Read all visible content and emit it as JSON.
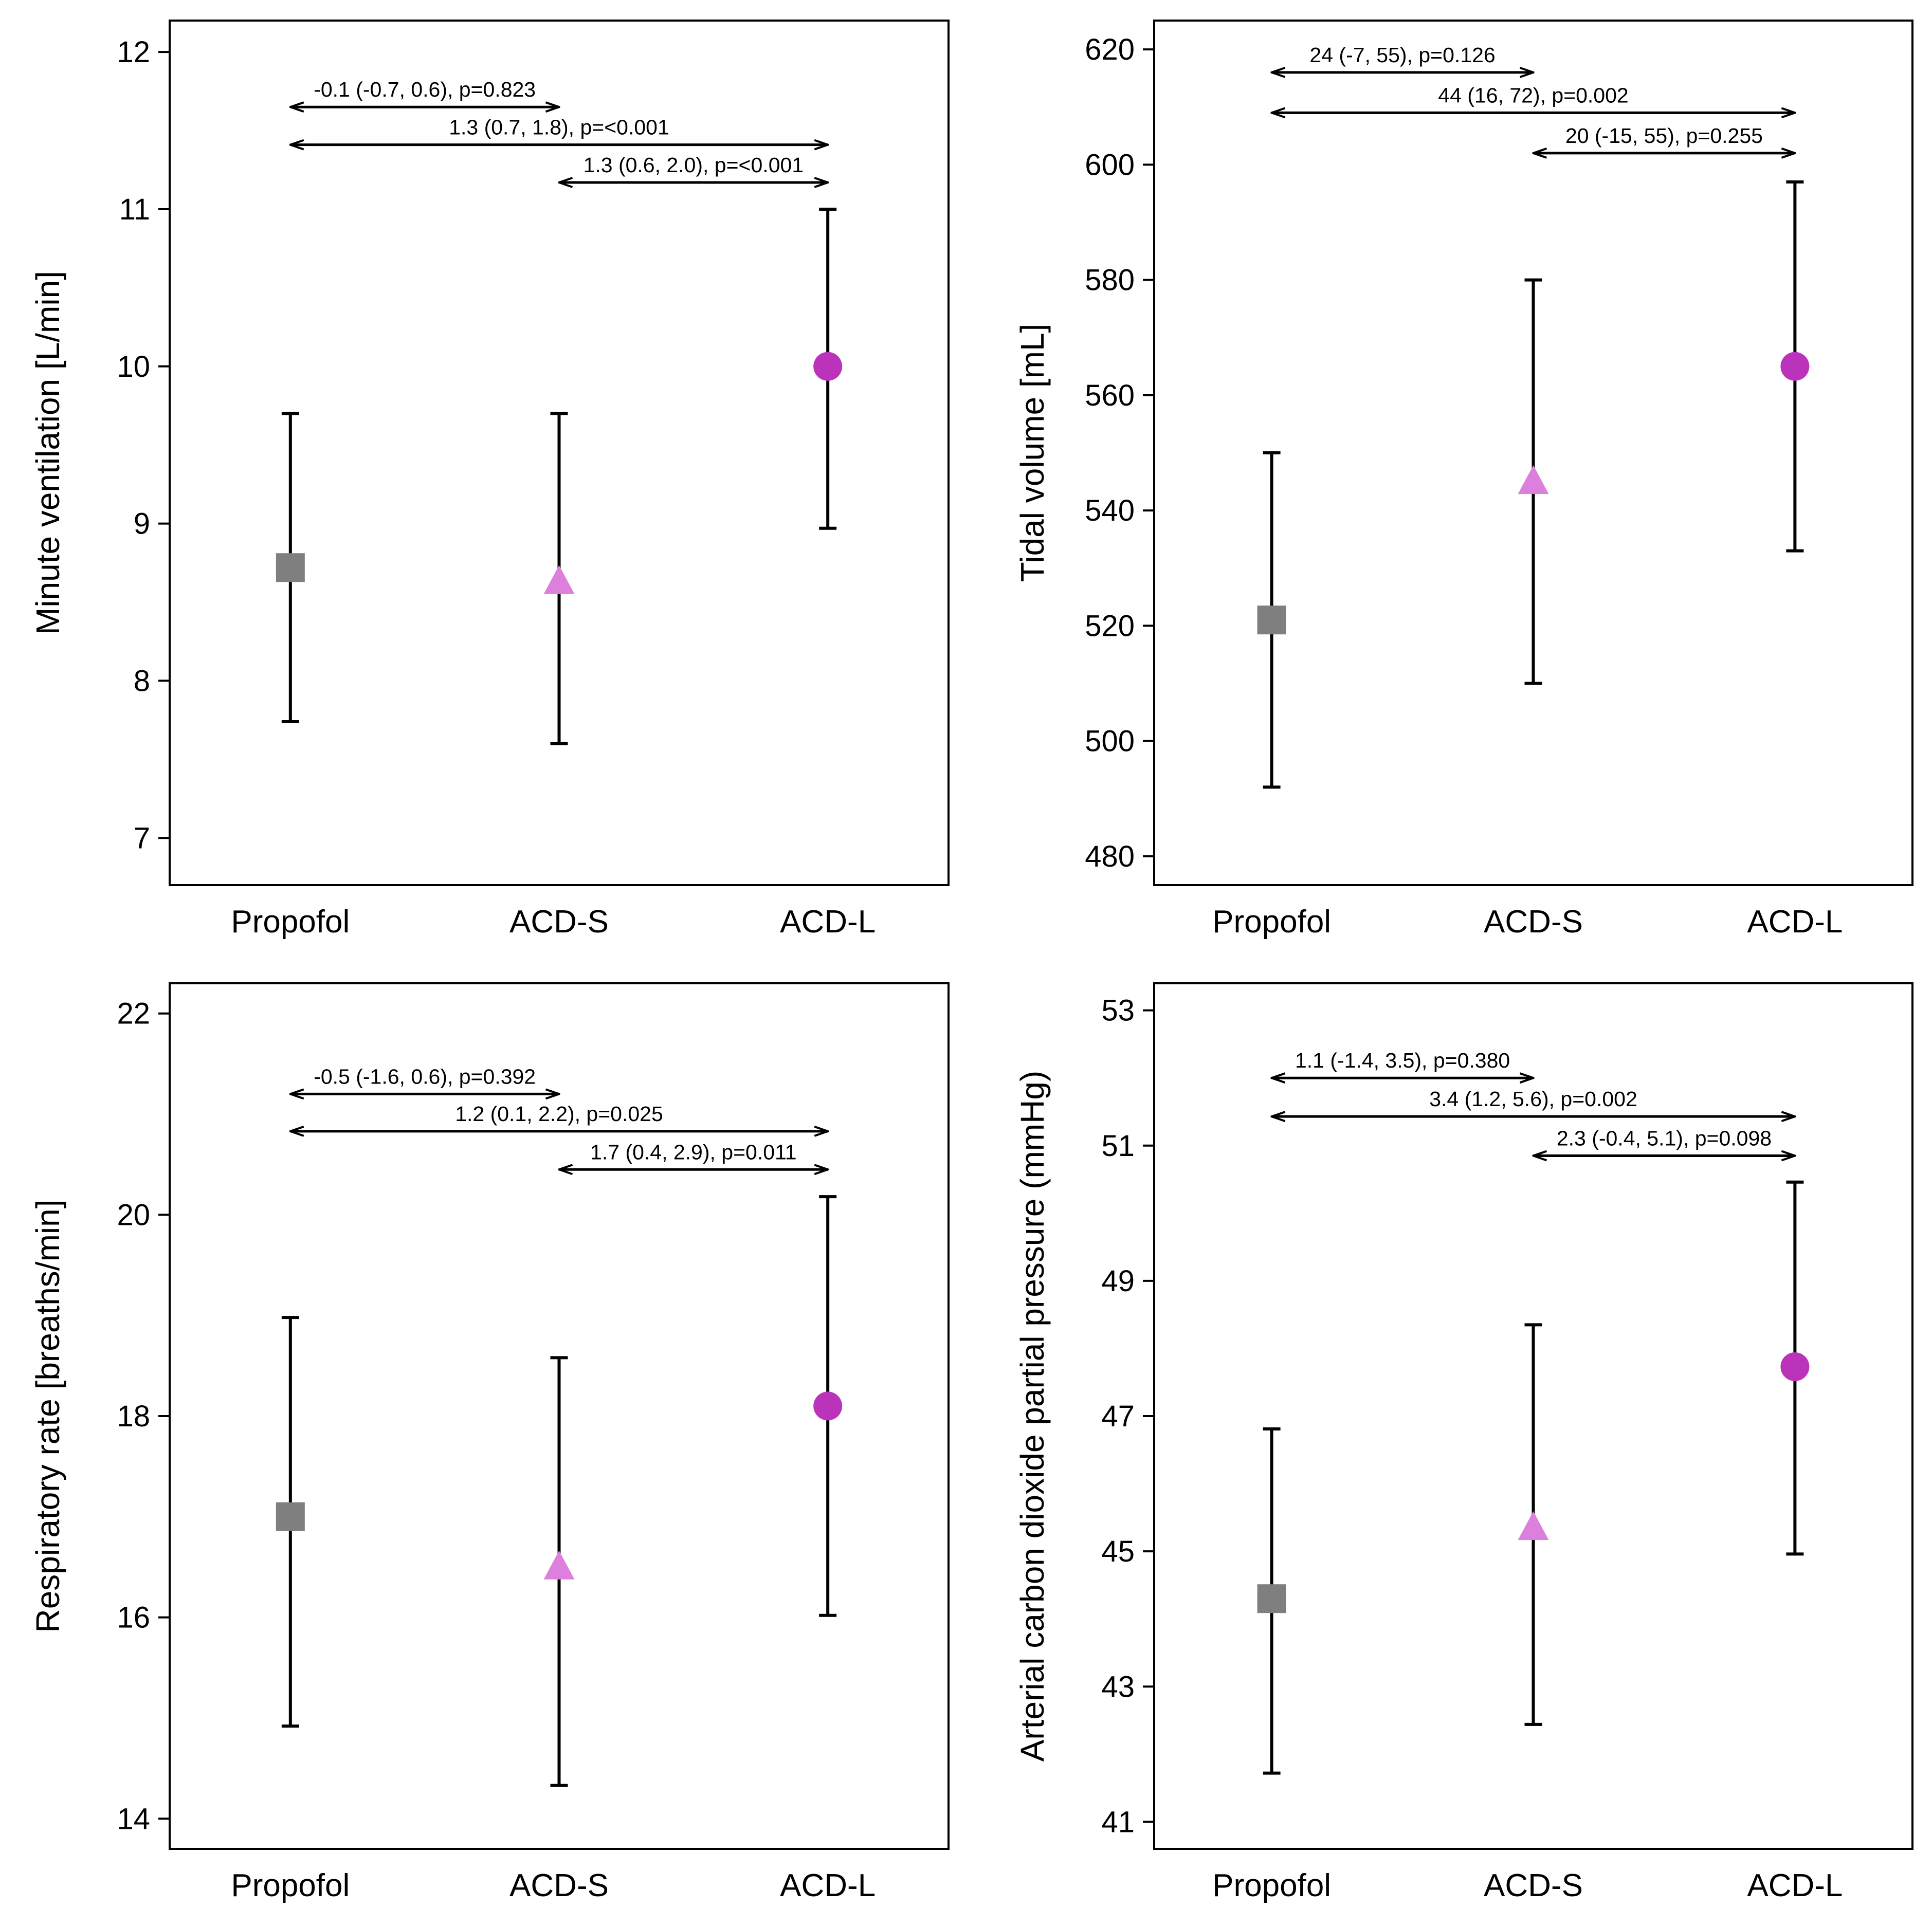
{
  "chart_data": [
    {
      "type": "errorbar",
      "panel": "top-left",
      "ylabel": "Minute ventilation [L/min]",
      "ylim": [
        6.7,
        12.2
      ],
      "yticks": [
        7,
        8,
        9,
        10,
        11,
        12
      ],
      "categories": [
        "Propofol",
        "ACD-S",
        "ACD-L"
      ],
      "series": [
        {
          "name": "Propofol",
          "marker": "square",
          "color": "#7f7f7f",
          "mean": 8.72,
          "low": 7.74,
          "high": 9.7
        },
        {
          "name": "ACD-S",
          "marker": "triangle",
          "color": "#dd7fdd",
          "mean": 8.63,
          "low": 7.6,
          "high": 9.7
        },
        {
          "name": "ACD-L",
          "marker": "circle",
          "color": "#bb33bb",
          "mean": 10.0,
          "low": 8.97,
          "high": 11.0
        }
      ],
      "comparisons": [
        {
          "from": 0,
          "to": 1,
          "label": "-0.1 (-0.7, 0.6), p=0.823",
          "y": 11.65
        },
        {
          "from": 0,
          "to": 2,
          "label": "1.3 (0.7, 1.8), p=<0.001",
          "y": 11.41
        },
        {
          "from": 1,
          "to": 2,
          "label": "1.3 (0.6, 2.0), p=<0.001",
          "y": 11.17
        }
      ]
    },
    {
      "type": "errorbar",
      "panel": "top-right",
      "ylabel": "Tidal volume [mL]",
      "ylim": [
        475,
        625
      ],
      "yticks": [
        480,
        500,
        520,
        540,
        560,
        580,
        600,
        620
      ],
      "categories": [
        "Propofol",
        "ACD-S",
        "ACD-L"
      ],
      "series": [
        {
          "name": "Propofol",
          "marker": "square",
          "color": "#7f7f7f",
          "mean": 521,
          "low": 492,
          "high": 550
        },
        {
          "name": "ACD-S",
          "marker": "triangle",
          "color": "#dd7fdd",
          "mean": 545,
          "low": 510,
          "high": 580
        },
        {
          "name": "ACD-L",
          "marker": "circle",
          "color": "#bb33bb",
          "mean": 565,
          "low": 533,
          "high": 597
        }
      ],
      "comparisons": [
        {
          "from": 0,
          "to": 1,
          "label": "24 (-7, 55), p=0.126",
          "y": 616
        },
        {
          "from": 0,
          "to": 2,
          "label": "44 (16, 72), p=0.002",
          "y": 609
        },
        {
          "from": 1,
          "to": 2,
          "label": "20 (-15, 55), p=0.255",
          "y": 602
        }
      ]
    },
    {
      "type": "errorbar",
      "panel": "bottom-left",
      "ylabel": "Respiratory rate [breaths/min]",
      "ylim": [
        13.7,
        22.3
      ],
      "yticks": [
        14,
        16,
        18,
        20,
        22
      ],
      "categories": [
        "Propofol",
        "ACD-S",
        "ACD-L"
      ],
      "series": [
        {
          "name": "Propofol",
          "marker": "square",
          "color": "#7f7f7f",
          "mean": 17.0,
          "low": 14.92,
          "high": 18.98
        },
        {
          "name": "ACD-S",
          "marker": "triangle",
          "color": "#dd7fdd",
          "mean": 16.5,
          "low": 14.33,
          "high": 18.58
        },
        {
          "name": "ACD-L",
          "marker": "circle",
          "color": "#bb33bb",
          "mean": 18.1,
          "low": 16.02,
          "high": 20.18
        }
      ],
      "comparisons": [
        {
          "from": 0,
          "to": 1,
          "label": "-0.5 (-1.6, 0.6), p=0.392",
          "y": 21.2
        },
        {
          "from": 0,
          "to": 2,
          "label": "1.2 (0.1, 2.2), p=0.025",
          "y": 20.83
        },
        {
          "from": 1,
          "to": 2,
          "label": "1.7 (0.4, 2.9), p=0.011",
          "y": 20.45
        }
      ]
    },
    {
      "type": "errorbar",
      "panel": "bottom-right",
      "ylabel": "Arterial carbon dioxide partial pressure (mmHg)",
      "ylim": [
        40.6,
        53.4
      ],
      "yticks": [
        41,
        43,
        45,
        47,
        49,
        51,
        53
      ],
      "categories": [
        "Propofol",
        "ACD-S",
        "ACD-L"
      ],
      "series": [
        {
          "name": "Propofol",
          "marker": "square",
          "color": "#7f7f7f",
          "mean": 44.3,
          "low": 41.72,
          "high": 46.81
        },
        {
          "name": "ACD-S",
          "marker": "triangle",
          "color": "#dd7fdd",
          "mean": 45.35,
          "low": 42.44,
          "high": 48.35
        },
        {
          "name": "ACD-L",
          "marker": "circle",
          "color": "#bb33bb",
          "mean": 47.73,
          "low": 44.96,
          "high": 50.46
        }
      ],
      "comparisons": [
        {
          "from": 0,
          "to": 1,
          "label": "1.1 (-1.4, 3.5), p=0.380",
          "y": 52.0
        },
        {
          "from": 0,
          "to": 2,
          "label": "3.4 (1.2, 5.6), p=0.002",
          "y": 51.43
        },
        {
          "from": 1,
          "to": 2,
          "label": "2.3 (-0.4, 5.1), p=0.098",
          "y": 50.85
        }
      ]
    }
  ]
}
